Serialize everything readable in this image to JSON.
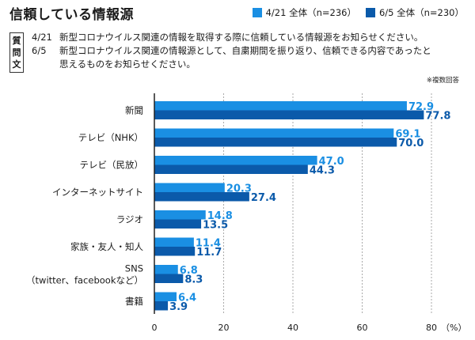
{
  "header": {
    "title": "信頼している情報源",
    "question_box": [
      "質",
      "問",
      "文"
    ],
    "questions": [
      {
        "date": "4/21",
        "text": "新型コロナウイルス関連の情報を取得する際に信頼している情報源をお知らせください。"
      },
      {
        "date": "6/5",
        "text": "新型コロナウイルス関連の情報源として、自粛期間を振り返り、信頼できる内容であったと"
      },
      {
        "date": "",
        "text": "思えるものをお知らせください。"
      }
    ],
    "note": "※複数回答"
  },
  "colors": {
    "series1": "#1a8fe3",
    "series2": "#0b5aaa",
    "grid": "#aaaaaa",
    "axis": "#222222"
  },
  "chart_data": {
    "type": "bar",
    "orientation": "horizontal",
    "title": "信頼している情報源",
    "categories": [
      "新聞",
      "テレビ（NHK）",
      "テレビ（民放）",
      "インターネットサイト",
      "ラジオ",
      "家族・友人・知人",
      "SNS\n（twitter、facebookなど）",
      "書籍"
    ],
    "series": [
      {
        "name": "4/21 全体（n=236）",
        "values": [
          72.9,
          69.1,
          47.0,
          20.3,
          14.8,
          11.4,
          6.8,
          6.4
        ]
      },
      {
        "name": "6/5 全体（n=230）",
        "values": [
          77.8,
          70.0,
          44.3,
          27.4,
          13.5,
          11.7,
          8.3,
          3.9
        ]
      }
    ],
    "value_labels": [
      [
        "72.9",
        "69.1",
        "47.0",
        "20.3",
        "14.8",
        "11.4",
        "6.8",
        "6.4"
      ],
      [
        "77.8",
        "70.0",
        "44.3",
        "27.4",
        "13.5",
        "11.7",
        "8.3",
        "3.9"
      ]
    ],
    "xlim": [
      0,
      80
    ],
    "xticks": [
      "0",
      "20",
      "40",
      "60",
      "80"
    ],
    "x_unit": "（%）",
    "grid": true,
    "legend_position": "top-right"
  }
}
